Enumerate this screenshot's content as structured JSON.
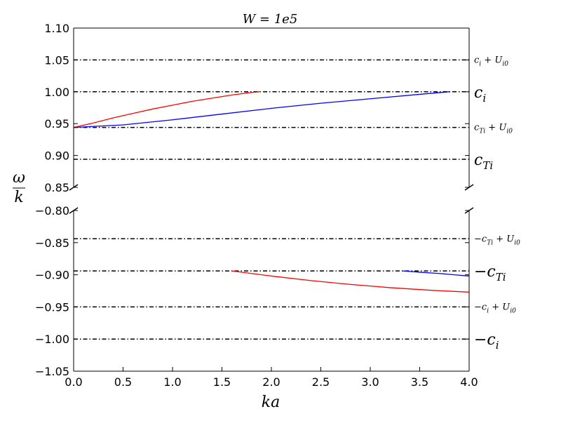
{
  "chart_data": {
    "type": "line",
    "title": "W = 1e5",
    "xlabel": "ka",
    "ylabel": "ω/k",
    "ylabel_num": "ω",
    "ylabel_den": "k",
    "xlim": [
      0.0,
      4.0
    ],
    "x_ticks": [
      "0.0",
      "0.5",
      "1.0",
      "1.5",
      "2.0",
      "2.5",
      "3.0",
      "3.5",
      "4.0"
    ],
    "panels": [
      {
        "name": "upper",
        "ylim": [
          0.85,
          1.1
        ],
        "y_ticks": [
          "0.85",
          "0.90",
          "0.95",
          "1.00",
          "1.05",
          "1.10"
        ],
        "reference_lines": [
          {
            "y": 1.05,
            "label": "c_i + U_i0",
            "text": "c",
            "sub": "i",
            "rest": " + U",
            "sub2": "i0",
            "size": "small"
          },
          {
            "y": 1.0,
            "label": "c_i",
            "text": "c",
            "sub": "i",
            "rest": "",
            "sub2": "",
            "size": "big"
          },
          {
            "y": 0.944,
            "label": "c_Ti + U_i0",
            "text": "c",
            "sub": "Ti",
            "rest": " + U",
            "sub2": "i0",
            "size": "small"
          },
          {
            "y": 0.894,
            "label": "c_Ti",
            "text": "c",
            "sub": "Ti",
            "rest": "",
            "sub2": "",
            "size": "big"
          }
        ],
        "series": [
          {
            "color": "#ff0000",
            "x": [
              0.0,
              0.2,
              0.4,
              0.6,
              0.8,
              1.0,
              1.2,
              1.4,
              1.6,
              1.8,
              1.88
            ],
            "y": [
              0.944,
              0.951,
              0.959,
              0.966,
              0.973,
              0.979,
              0.985,
              0.99,
              0.995,
              0.999,
              1.0
            ]
          },
          {
            "color": "#0000ff",
            "x": [
              0.0,
              0.5,
              1.0,
              1.5,
              2.0,
              2.5,
              3.0,
              3.5,
              3.8
            ],
            "y": [
              0.944,
              0.948,
              0.956,
              0.965,
              0.974,
              0.982,
              0.989,
              0.996,
              1.0
            ]
          }
        ]
      },
      {
        "name": "lower",
        "ylim": [
          -1.05,
          -0.8
        ],
        "y_ticks": [
          "−1.05",
          "−1.00",
          "−0.95",
          "−0.90",
          "−0.85",
          "−0.80"
        ],
        "reference_lines": [
          {
            "y": -0.844,
            "label": "-c_Ti + U_i0",
            "text": "−c",
            "sub": "Ti",
            "rest": " + U",
            "sub2": "i0",
            "size": "small"
          },
          {
            "y": -0.894,
            "label": "-c_Ti",
            "text": "−c",
            "sub": "Ti",
            "rest": "",
            "sub2": "",
            "size": "big"
          },
          {
            "y": -0.95,
            "label": "-c_i + U_i0",
            "text": "−c",
            "sub": "i",
            "rest": " + U",
            "sub2": "i0",
            "size": "small"
          },
          {
            "y": -1.0,
            "label": "-c_i",
            "text": "−c",
            "sub": "i",
            "rest": "",
            "sub2": "",
            "size": "big"
          }
        ],
        "series": [
          {
            "color": "#ff0000",
            "x": [
              1.6,
              2.0,
              2.4,
              2.8,
              3.2,
              3.6,
              4.0
            ],
            "y": [
              -0.894,
              -0.902,
              -0.909,
              -0.915,
              -0.92,
              -0.924,
              -0.927
            ]
          },
          {
            "color": "#0000ff",
            "x": [
              3.33,
              3.5,
              3.7,
              3.85,
              4.0
            ],
            "y": [
              -0.894,
              -0.896,
              -0.898,
              -0.9,
              -0.902
            ]
          }
        ]
      }
    ]
  }
}
